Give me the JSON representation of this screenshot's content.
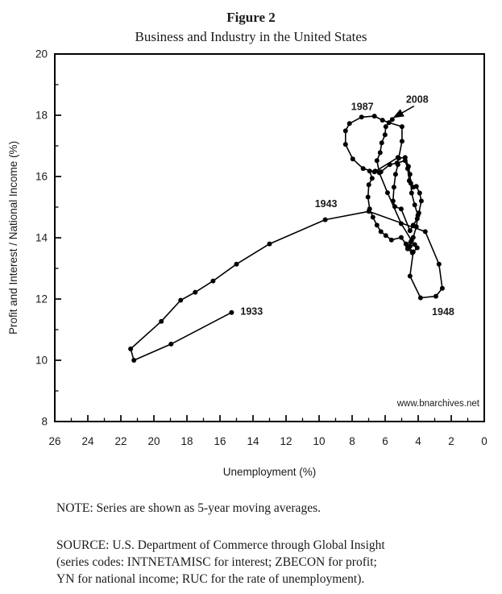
{
  "page": {
    "title": "Figure 2",
    "subtitle": "Business and Industry in the United States"
  },
  "notes": {
    "note_line": "NOTE: Series are shown as 5-year moving averages.",
    "source_lines": [
      "SOURCE: U.S. Department of Commerce through Global Insight",
      "(series codes: INTNETAMISC for interest; ZBECON for profit;",
      "YN for national income; RUC for the rate of unemployment)."
    ]
  },
  "chart_data": {
    "type": "line",
    "title": "Figure 2",
    "subtitle": "Business and Industry in the United States",
    "xlabel": "Unemployment (%)",
    "ylabel": "Profit and Interest / National Income (%)",
    "x_axis": {
      "min": 0,
      "max": 26,
      "reversed": true,
      "major_ticks": [
        26,
        24,
        22,
        20,
        18,
        16,
        14,
        12,
        10,
        8,
        6,
        4,
        2,
        0
      ],
      "minor_step": 1
    },
    "y_axis": {
      "min": 8,
      "max": 20,
      "major_ticks": [
        20,
        18,
        16,
        14,
        12,
        10,
        8
      ],
      "minor_step": 1
    },
    "grid": false,
    "legend": "none",
    "marker": "dot",
    "line_color": "#000000",
    "watermark": "www.bnarchives.net",
    "series": [
      {
        "name": "Profit and interest / national income vs unemployment (5-year moving averages, 1933-2008)",
        "points": [
          [
            15.3,
            11.56
          ],
          [
            18.96,
            10.53
          ],
          [
            21.21,
            10.0
          ],
          [
            21.41,
            10.37
          ],
          [
            19.55,
            11.27
          ],
          [
            18.38,
            11.96
          ],
          [
            17.5,
            12.22
          ],
          [
            16.42,
            12.59
          ],
          [
            15.0,
            13.14
          ],
          [
            13.0,
            13.8
          ],
          [
            9.63,
            14.59
          ],
          [
            6.99,
            14.86
          ],
          [
            3.57,
            14.2
          ],
          [
            2.74,
            13.14
          ],
          [
            2.54,
            12.35
          ],
          [
            2.93,
            12.09
          ],
          [
            3.86,
            12.04
          ],
          [
            4.5,
            12.75
          ],
          [
            4.3,
            13.54
          ],
          [
            4.64,
            13.72
          ],
          [
            5.03,
            14.01
          ],
          [
            5.62,
            13.93
          ],
          [
            5.96,
            14.07
          ],
          [
            6.26,
            14.2
          ],
          [
            6.5,
            14.41
          ],
          [
            6.74,
            14.67
          ],
          [
            6.94,
            14.94
          ],
          [
            7.04,
            15.33
          ],
          [
            6.99,
            15.73
          ],
          [
            6.79,
            15.94
          ],
          [
            6.94,
            16.18
          ],
          [
            6.6,
            16.18
          ],
          [
            6.26,
            16.15
          ],
          [
            5.72,
            16.39
          ],
          [
            5.28,
            16.44
          ],
          [
            4.79,
            16.52
          ],
          [
            4.64,
            16.26
          ],
          [
            4.54,
            15.86
          ],
          [
            4.3,
            15.65
          ],
          [
            4.11,
            15.68
          ],
          [
            3.91,
            15.46
          ],
          [
            3.81,
            15.2
          ],
          [
            3.96,
            14.81
          ],
          [
            4.06,
            14.62
          ],
          [
            4.3,
            14.41
          ],
          [
            4.5,
            14.23
          ],
          [
            5.03,
            14.94
          ],
          [
            5.42,
            15.02
          ],
          [
            5.52,
            15.2
          ],
          [
            5.47,
            15.65
          ],
          [
            5.37,
            16.07
          ],
          [
            5.23,
            16.39
          ],
          [
            5.23,
            16.62
          ],
          [
            6.65,
            16.15
          ],
          [
            7.33,
            16.26
          ],
          [
            7.96,
            16.57
          ],
          [
            8.4,
            17.05
          ],
          [
            8.4,
            17.49
          ],
          [
            8.16,
            17.73
          ],
          [
            7.43,
            17.94
          ],
          [
            6.65,
            17.97
          ],
          [
            6.16,
            17.84
          ],
          [
            5.77,
            17.76
          ],
          [
            4.98,
            17.63
          ],
          [
            4.98,
            17.15
          ],
          [
            5.18,
            16.6
          ],
          [
            4.79,
            16.62
          ],
          [
            4.59,
            16.33
          ],
          [
            4.5,
            16.07
          ],
          [
            4.45,
            15.78
          ],
          [
            4.4,
            15.46
          ],
          [
            4.21,
            15.07
          ],
          [
            4.02,
            14.73
          ],
          [
            4.11,
            14.36
          ],
          [
            4.3,
            14.01
          ],
          [
            4.45,
            13.86
          ],
          [
            4.74,
            13.8
          ],
          [
            4.5,
            13.72
          ],
          [
            4.21,
            13.78
          ],
          [
            4.06,
            13.67
          ],
          [
            4.35,
            13.51
          ],
          [
            4.64,
            13.64
          ],
          [
            4.4,
            13.91
          ],
          [
            5.03,
            14.46
          ],
          [
            5.86,
            15.47
          ],
          [
            6.35,
            16.12
          ],
          [
            6.5,
            16.52
          ],
          [
            6.3,
            16.78
          ],
          [
            6.21,
            17.1
          ],
          [
            6.01,
            17.36
          ],
          [
            5.96,
            17.63
          ],
          [
            5.57,
            17.86
          ]
        ]
      }
    ],
    "annotations": [
      {
        "text": "1933",
        "u": 14.76,
        "p": 11.61,
        "anchor": "start"
      },
      {
        "text": "1943",
        "u": 9.58,
        "p": 15.12,
        "anchor": "middle"
      },
      {
        "text": "1987",
        "u": 7.38,
        "p": 18.29,
        "anchor": "middle"
      },
      {
        "text": "2008",
        "u": 4.06,
        "p": 18.52,
        "anchor": "middle"
      },
      {
        "text": "1948",
        "u": 2.49,
        "p": 11.59,
        "anchor": "middle"
      }
    ],
    "arrow": {
      "from": [
        4.25,
        18.3
      ],
      "to": [
        5.47,
        17.93
      ]
    }
  }
}
